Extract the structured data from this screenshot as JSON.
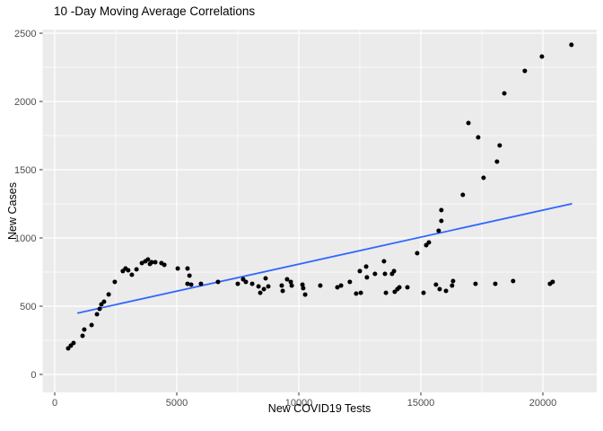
{
  "chart_data": {
    "type": "scatter",
    "title": "10 -Day Moving Average Correlations",
    "xlabel": "New COVID19 Tests",
    "ylabel": "New Cases",
    "xlim": [
      -500,
      22200
    ],
    "ylim": [
      -130,
      2530
    ],
    "x_ticks": [
      0,
      5000,
      10000,
      15000,
      20000
    ],
    "x_minor_ticks": [
      2500,
      7500,
      12500,
      17500
    ],
    "y_ticks": [
      0,
      500,
      1000,
      1500,
      2000,
      2500
    ],
    "y_minor_ticks": [
      250,
      750,
      1250,
      1750,
      2250
    ],
    "grid": true,
    "legend": "none",
    "colors": {
      "panel_bg": "#EBEBEB",
      "gridline": "#FFFFFF",
      "point": "#000000",
      "trend": "#3366FF",
      "tick_label": "#4D4D4D",
      "tick_mark": "#333333",
      "text": "#000000",
      "background": "#FFFFFF"
    },
    "trend_line": {
      "type": "linear",
      "x1": 950,
      "y1": 450,
      "x2": 21170,
      "y2": 1250
    },
    "points": [
      [
        550,
        191
      ],
      [
        660,
        211
      ],
      [
        770,
        230
      ],
      [
        1140,
        283
      ],
      [
        1210,
        329
      ],
      [
        1510,
        362
      ],
      [
        1730,
        441
      ],
      [
        1840,
        480
      ],
      [
        1910,
        513
      ],
      [
        2020,
        533
      ],
      [
        2210,
        586
      ],
      [
        2460,
        678
      ],
      [
        2790,
        757
      ],
      [
        2900,
        776
      ],
      [
        3010,
        763
      ],
      [
        3160,
        730
      ],
      [
        3350,
        770
      ],
      [
        3570,
        816
      ],
      [
        3710,
        829
      ],
      [
        3820,
        842
      ],
      [
        3900,
        809
      ],
      [
        3970,
        822
      ],
      [
        4120,
        822
      ],
      [
        4370,
        816
      ],
      [
        4490,
        803
      ],
      [
        5040,
        776
      ],
      [
        5440,
        776
      ],
      [
        5520,
        724
      ],
      [
        5440,
        664
      ],
      [
        5590,
        658
      ],
      [
        5990,
        664
      ],
      [
        6690,
        678
      ],
      [
        7500,
        664
      ],
      [
        7720,
        697
      ],
      [
        7830,
        678
      ],
      [
        8090,
        664
      ],
      [
        8350,
        645
      ],
      [
        8420,
        598
      ],
      [
        8570,
        625
      ],
      [
        8640,
        704
      ],
      [
        8750,
        645
      ],
      [
        9300,
        651
      ],
      [
        9340,
        612
      ],
      [
        9520,
        697
      ],
      [
        9670,
        678
      ],
      [
        9710,
        651
      ],
      [
        10150,
        658
      ],
      [
        10180,
        632
      ],
      [
        10260,
        585
      ],
      [
        10880,
        651
      ],
      [
        11580,
        638
      ],
      [
        11730,
        651
      ],
      [
        12090,
        678
      ],
      [
        12350,
        592
      ],
      [
        12540,
        598
      ],
      [
        12500,
        757
      ],
      [
        12760,
        790
      ],
      [
        12790,
        711
      ],
      [
        13120,
        737
      ],
      [
        13490,
        829
      ],
      [
        13530,
        737
      ],
      [
        13570,
        598
      ],
      [
        13820,
        737
      ],
      [
        13900,
        757
      ],
      [
        13930,
        605
      ],
      [
        14040,
        625
      ],
      [
        14120,
        638
      ],
      [
        14450,
        638
      ],
      [
        14850,
        888
      ],
      [
        15110,
        598
      ],
      [
        15220,
        947
      ],
      [
        15330,
        967
      ],
      [
        15620,
        658
      ],
      [
        15770,
        625
      ],
      [
        16030,
        612
      ],
      [
        16280,
        651
      ],
      [
        15730,
        1053
      ],
      [
        15840,
        1125
      ],
      [
        15840,
        1204
      ],
      [
        16720,
        1316
      ],
      [
        16950,
        1842
      ],
      [
        17350,
        1737
      ],
      [
        17570,
        1441
      ],
      [
        18120,
        1559
      ],
      [
        18230,
        1678
      ],
      [
        18420,
        2059
      ],
      [
        19260,
        2224
      ],
      [
        19960,
        2329
      ],
      [
        21170,
        2415
      ],
      [
        16320,
        684
      ],
      [
        17240,
        664
      ],
      [
        18050,
        664
      ],
      [
        18780,
        684
      ],
      [
        20290,
        664
      ],
      [
        20400,
        678
      ]
    ]
  }
}
